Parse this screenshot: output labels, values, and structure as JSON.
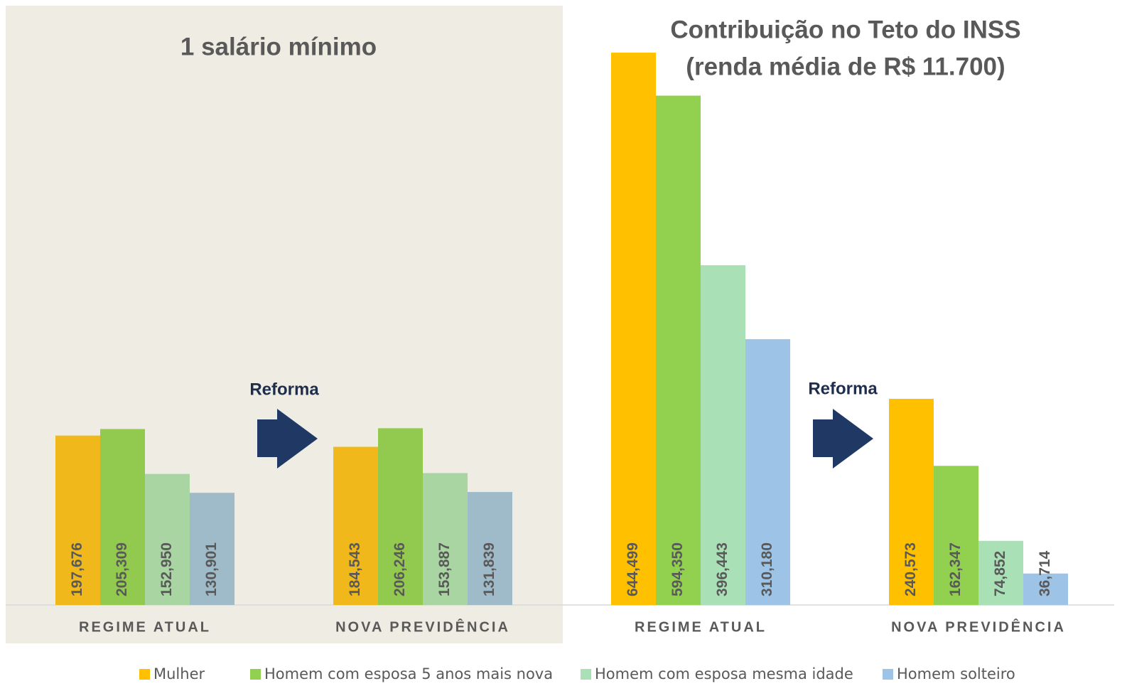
{
  "chart_data": [
    {
      "type": "bar",
      "title": [
        "1 salário mínimo"
      ],
      "annotation": "Reforma",
      "categories": [
        "REGIME ATUAL",
        "NOVA PREVIDÊNCIA"
      ],
      "series": [
        {
          "color": "#f0b81a",
          "values": [
            197676,
            184543
          ],
          "value_labels": [
            "197,676",
            "184,543"
          ]
        },
        {
          "color": "#92c94f",
          "values": [
            205309,
            206246
          ],
          "value_labels": [
            "205,309",
            "206,246"
          ]
        },
        {
          "color": "#a9d5a2",
          "values": [
            152950,
            153887
          ],
          "value_labels": [
            "152,950",
            "153,887"
          ]
        },
        {
          "color": "#9fbac9",
          "values": [
            130901,
            131839
          ],
          "value_labels": [
            "130,901",
            "131,839"
          ]
        }
      ]
    },
    {
      "type": "bar",
      "title": [
        "Contribuição no Teto do INSS",
        "(renda média de R$ 11.700)"
      ],
      "annotation": "Reforma",
      "categories": [
        "REGIME ATUAL",
        "NOVA PREVIDÊNCIA"
      ],
      "series": [
        {
          "color": "#ffc000",
          "values": [
            644499,
            240573
          ],
          "value_labels": [
            "644,499",
            "240,573"
          ]
        },
        {
          "color": "#92d050",
          "values": [
            594350,
            162347
          ],
          "value_labels": [
            "594,350",
            "162,347"
          ]
        },
        {
          "color": "#a9e0b5",
          "values": [
            396443,
            74852
          ],
          "value_labels": [
            "396,443",
            "74,852"
          ]
        },
        {
          "color": "#9dc3e6",
          "values": [
            310180,
            36714
          ],
          "value_labels": [
            "310,180",
            "36,714"
          ]
        }
      ]
    }
  ],
  "legend": [
    {
      "name": "Mulher",
      "color": "#ffc000"
    },
    {
      "name": "Homem com esposa 5 anos mais nova",
      "color": "#92d050"
    },
    {
      "name": "Homem com esposa mesma idade",
      "color": "#a9e0b5"
    },
    {
      "name": "Homem solteiro",
      "color": "#9dc3e6"
    }
  ]
}
